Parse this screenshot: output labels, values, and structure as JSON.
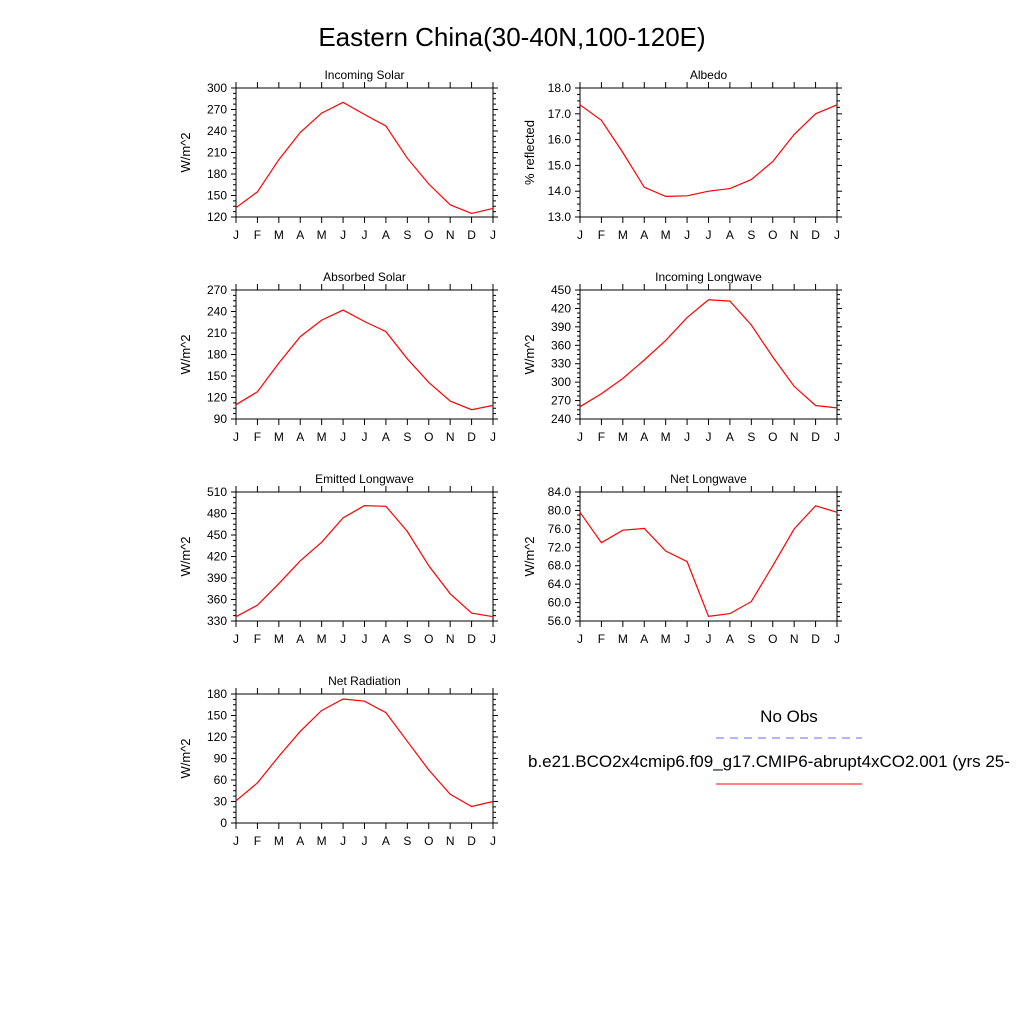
{
  "figure": {
    "title": "Eastern China(30-40N,100-120E)"
  },
  "legend": {
    "obs_label": "No Obs",
    "model_label": "b.e21.BCO2x4cmip6.f09_g17.CMIP6-abrupt4xCO2.001 (yrs 25-",
    "obs_color": "#6666ff",
    "model_color": "#ff0000"
  },
  "chart_data": [
    {
      "type": "line",
      "title": "Incoming Solar",
      "ylabel": "W/m^2",
      "categories": [
        "J",
        "F",
        "M",
        "A",
        "M",
        "J",
        "J",
        "A",
        "S",
        "O",
        "N",
        "D",
        "J"
      ],
      "ylim": [
        120,
        300
      ],
      "yticks": [
        "120",
        "150",
        "180",
        "210",
        "240",
        "270",
        "300"
      ],
      "series": [
        {
          "values": [
            133,
            155,
            200,
            238,
            265,
            280,
            263,
            247,
            202,
            166,
            137,
            125,
            132
          ]
        }
      ]
    },
    {
      "type": "line",
      "title": "Albedo",
      "ylabel": "% reflected",
      "categories": [
        "J",
        "F",
        "M",
        "A",
        "M",
        "J",
        "J",
        "A",
        "S",
        "O",
        "N",
        "D",
        "J"
      ],
      "ylim": [
        13.0,
        18.0
      ],
      "yticks": [
        "13.0",
        "14.0",
        "15.0",
        "16.0",
        "17.0",
        "18.0"
      ],
      "series": [
        {
          "values": [
            17.35,
            16.75,
            15.5,
            14.15,
            13.8,
            13.82,
            14.0,
            14.1,
            14.45,
            15.15,
            16.2,
            17.0,
            17.35
          ]
        }
      ]
    },
    {
      "type": "line",
      "title": "Absorbed Solar",
      "ylabel": "W/m^2",
      "categories": [
        "J",
        "F",
        "M",
        "A",
        "M",
        "J",
        "J",
        "A",
        "S",
        "O",
        "N",
        "D",
        "J"
      ],
      "ylim": [
        90,
        270
      ],
      "yticks": [
        "90",
        "120",
        "150",
        "180",
        "210",
        "240",
        "270"
      ],
      "series": [
        {
          "values": [
            110,
            128,
            168,
            205,
            228,
            242,
            226,
            212,
            174,
            141,
            115,
            103,
            109
          ]
        }
      ]
    },
    {
      "type": "line",
      "title": "Incoming Longwave",
      "ylabel": "W/m^2",
      "categories": [
        "J",
        "F",
        "M",
        "A",
        "M",
        "J",
        "J",
        "A",
        "S",
        "O",
        "N",
        "D",
        "J"
      ],
      "ylim": [
        240,
        450
      ],
      "yticks": [
        "240",
        "270",
        "300",
        "330",
        "360",
        "390",
        "420",
        "450"
      ],
      "series": [
        {
          "values": [
            260,
            281,
            306,
            336,
            368,
            405,
            434,
            432,
            393,
            341,
            293,
            262,
            258
          ]
        }
      ]
    },
    {
      "type": "line",
      "title": "Emitted Longwave",
      "ylabel": "W/m^2",
      "categories": [
        "J",
        "F",
        "M",
        "A",
        "M",
        "J",
        "J",
        "A",
        "S",
        "O",
        "N",
        "D",
        "J"
      ],
      "ylim": [
        330,
        510
      ],
      "yticks": [
        "330",
        "360",
        "390",
        "420",
        "450",
        "480",
        "510"
      ],
      "series": [
        {
          "values": [
            336,
            352,
            382,
            414,
            440,
            474,
            491,
            490,
            455,
            407,
            368,
            341,
            336
          ]
        }
      ]
    },
    {
      "type": "line",
      "title": "Net Longwave",
      "ylabel": "W/m^2",
      "categories": [
        "J",
        "F",
        "M",
        "A",
        "M",
        "J",
        "J",
        "A",
        "S",
        "O",
        "N",
        "D",
        "J"
      ],
      "ylim": [
        56.0,
        84.0
      ],
      "yticks": [
        "56.0",
        "60.0",
        "64.0",
        "68.0",
        "72.0",
        "76.0",
        "80.0",
        "84.0"
      ],
      "series": [
        {
          "values": [
            79.6,
            73.0,
            75.7,
            76.1,
            71.2,
            68.9,
            57.0,
            57.6,
            60.2,
            68.0,
            76.0,
            81.0,
            79.6
          ]
        }
      ]
    },
    {
      "type": "line",
      "title": "Net Radiation",
      "ylabel": "W/m^2",
      "categories": [
        "J",
        "F",
        "M",
        "A",
        "M",
        "J",
        "J",
        "A",
        "S",
        "O",
        "N",
        "D",
        "J"
      ],
      "ylim": [
        0,
        180
      ],
      "yticks": [
        "0",
        "30",
        "60",
        "90",
        "120",
        "150",
        "180"
      ],
      "series": [
        {
          "values": [
            31,
            56,
            93,
            128,
            157,
            173,
            170,
            154,
            114,
            74,
            40,
            23,
            30
          ]
        }
      ]
    }
  ]
}
